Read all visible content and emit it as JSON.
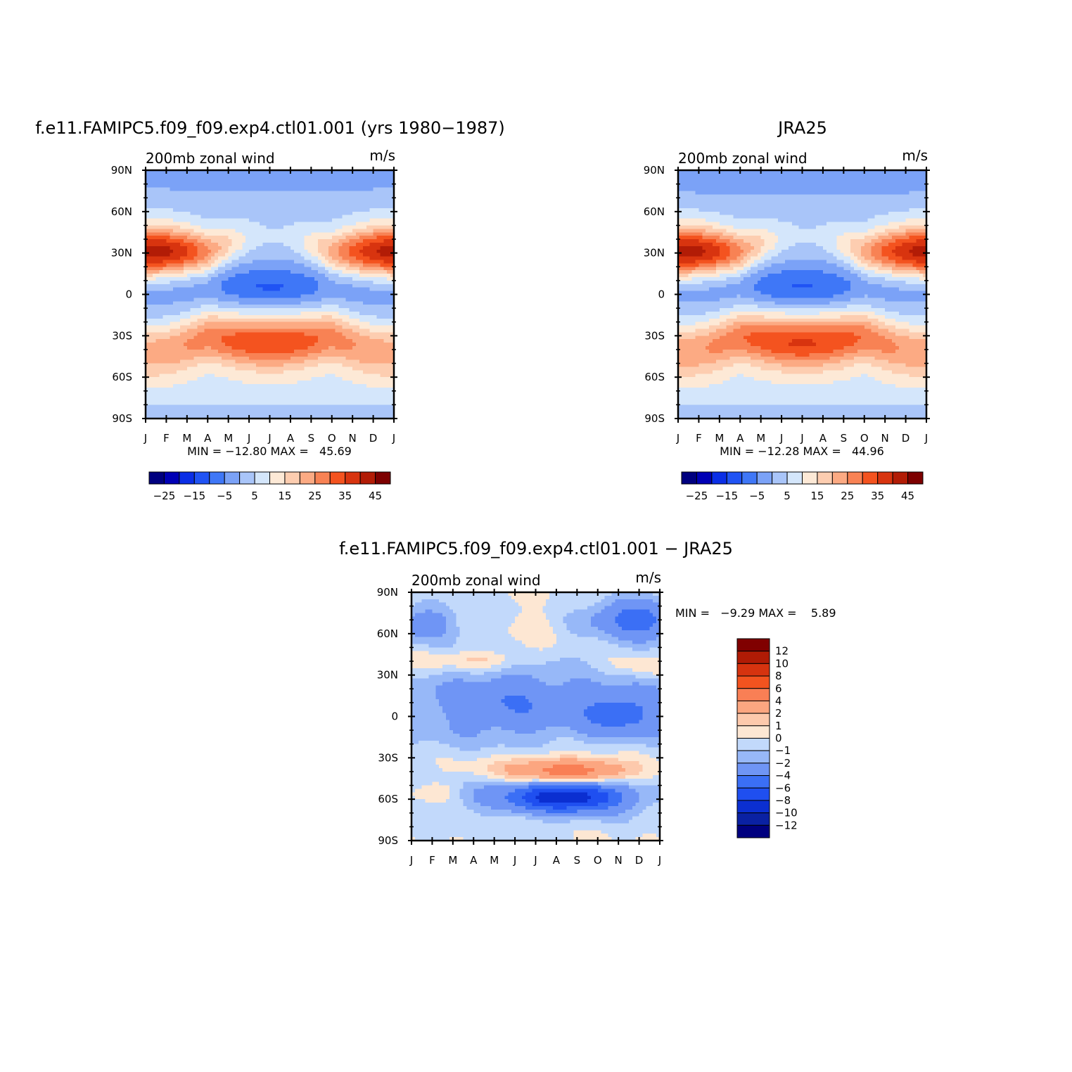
{
  "colors": {
    "wind_palette": [
      "#00007f",
      "#0000b5",
      "#0a2ee6",
      "#2053f4",
      "#3f77f7",
      "#7ba2f7",
      "#a9c5f9",
      "#d4e6fb",
      "#fde9d6",
      "#fdcdb0",
      "#fcaa83",
      "#f88254",
      "#f4531f",
      "#d8340f",
      "#b21c06",
      "#7d0000"
    ],
    "diff_palette": [
      "#00007f",
      "#0a21a3",
      "#0b2fd1",
      "#1f4ff0",
      "#3b6ff5",
      "#6f95f5",
      "#97b8f8",
      "#c2d9fb",
      "#fde7d3",
      "#fdc9ac",
      "#fca680",
      "#f97f55",
      "#f3531f",
      "#d6330f",
      "#b01b05",
      "#800000"
    ]
  },
  "chart_data": [
    {
      "type": "heatmap",
      "title": "f.e11.FAMIPC5.f09_f09.exp4.ctl01.001 (yrs 1980−1987)",
      "left_label": "200mb zonal wind",
      "right_label": "m/s",
      "x_tick_labels": [
        "J",
        "F",
        "M",
        "A",
        "M",
        "J",
        "J",
        "A",
        "S",
        "O",
        "N",
        "D",
        "J"
      ],
      "y_tick_labels": [
        "90N",
        "60N",
        "30N",
        "0",
        "30S",
        "60S",
        "90S"
      ],
      "ylim": [
        -90,
        90
      ],
      "stats_text": "MIN = −12.80 MAX =   45.69",
      "min": -12.8,
      "max": 45.69,
      "colorbar": {
        "orientation": "horizontal",
        "levels": [
          -30,
          -25,
          -20,
          -15,
          -10,
          -5,
          0,
          5,
          10,
          15,
          20,
          25,
          30,
          35,
          40,
          45
        ],
        "labels": [
          "−25",
          "−15",
          "−5",
          "5",
          "15",
          "25",
          "35",
          "45"
        ]
      }
    },
    {
      "type": "heatmap",
      "title": "JRA25",
      "left_label": "200mb zonal wind",
      "right_label": "m/s",
      "x_tick_labels": [
        "J",
        "F",
        "M",
        "A",
        "M",
        "J",
        "J",
        "A",
        "S",
        "O",
        "N",
        "D",
        "J"
      ],
      "y_tick_labels": [
        "90N",
        "60N",
        "30N",
        "0",
        "30S",
        "60S",
        "90S"
      ],
      "ylim": [
        -90,
        90
      ],
      "stats_text": "MIN = −12.28 MAX =   44.96",
      "min": -12.28,
      "max": 44.96,
      "colorbar": {
        "orientation": "horizontal",
        "levels": [
          -30,
          -25,
          -20,
          -15,
          -10,
          -5,
          0,
          5,
          10,
          15,
          20,
          25,
          30,
          35,
          40,
          45
        ],
        "labels": [
          "−25",
          "−15",
          "−5",
          "5",
          "15",
          "25",
          "35",
          "45"
        ]
      }
    },
    {
      "type": "heatmap",
      "title": "f.e11.FAMIPC5.f09_f09.exp4.ctl01.001 − JRA25",
      "left_label": "200mb zonal wind",
      "right_label": "m/s",
      "x_tick_labels": [
        "J",
        "F",
        "M",
        "A",
        "M",
        "J",
        "J",
        "A",
        "S",
        "O",
        "N",
        "D",
        "J"
      ],
      "y_tick_labels": [
        "90N",
        "60N",
        "30N",
        "0",
        "30S",
        "60S",
        "90S"
      ],
      "ylim": [
        -90,
        90
      ],
      "stats_text": "MIN =   −9.29 MAX =    5.89",
      "min": -9.29,
      "max": 5.89,
      "colorbar": {
        "orientation": "vertical",
        "levels": [
          -14,
          -12,
          -10,
          -8,
          -6,
          -4,
          -2,
          -1,
          0,
          1,
          2,
          4,
          6,
          8,
          10,
          12
        ],
        "labels": [
          "12",
          "10",
          "8",
          "6",
          "4",
          "2",
          "1",
          "0",
          "−1",
          "−2",
          "−4",
          "−6",
          "−8",
          "−10",
          "−12"
        ]
      }
    }
  ]
}
